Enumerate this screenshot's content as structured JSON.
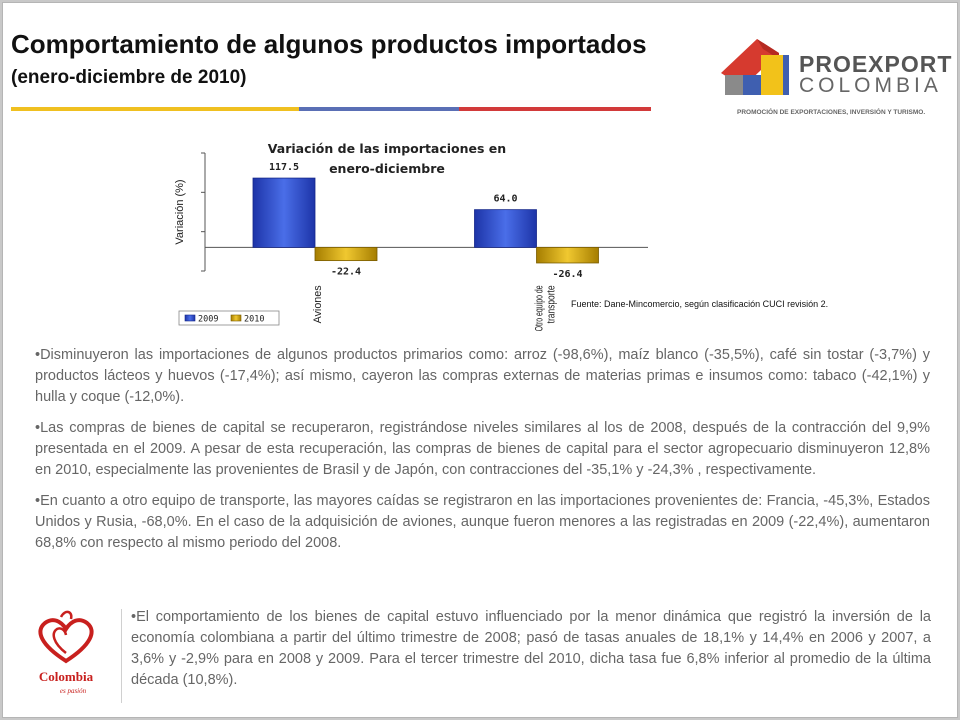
{
  "header": {
    "title": "Comportamiento de algunos productos importados",
    "subtitle": "(enero-diciembre de 2010)"
  },
  "logo": {
    "name": "PROEXPORT",
    "country": "COLOMBIA",
    "tagline": "PROMOCIÓN DE EXPORTACIONES, INVERSIÓN Y TURISMO."
  },
  "colors": {
    "series_2009": "#2e4fcf",
    "series_2010": "#d9a800",
    "logo_red": "#d63a2f",
    "logo_yellow": "#f2c21a",
    "logo_blue": "#3f5fb0",
    "logo_gray": "#8a8a8a"
  },
  "chart_data": {
    "type": "bar",
    "title": "Variación de las importaciones en enero-diciembre",
    "ylabel": "Variación (%)",
    "xlabel": "",
    "categories": [
      "Aviones",
      "Otro equipo de transporte"
    ],
    "category_lines": [
      [
        "Aviones"
      ],
      [
        "Otro equipo de",
        "transporte"
      ]
    ],
    "series": [
      {
        "name": "2009",
        "values": [
          117.5,
          64.0
        ],
        "labels": [
          "117.5",
          "64.0"
        ]
      },
      {
        "name": "2010",
        "values": [
          -22.4,
          -26.4
        ],
        "labels": [
          "-22.4",
          "-26.4"
        ]
      }
    ],
    "ylim": [
      -40,
      160
    ],
    "grid": false,
    "legend": "bottom-left"
  },
  "source_note": "Fuente: Dane-Mincomercio, según clasificación CUCI revisión 2.",
  "paragraphs": [
    "•Disminuyeron las importaciones de algunos productos primarios como: arroz (-98,6%), maíz blanco (-35,5%), café sin tostar (-3,7%) y productos lácteos y huevos (-17,4%);  así mismo, cayeron las compras externas de materias primas e insumos como: tabaco (-42,1%) y hulla y coque (-12,0%).",
    "•Las compras de bienes de capital se recuperaron, registrándose niveles similares al los de 2008, después de la contracción del 9,9% presentada en el 2009. A pesar de esta recuperación, las compras de bienes de capital para el sector agropecuario disminuyeron  12,8% en 2010, especialmente las provenientes de Brasil y de Japón, con contracciones del -35,1% y -24,3% , respectivamente.",
    "•En cuanto a otro equipo de transporte, las mayores caídas se registraron en las importaciones provenientes de: Francia, -45,3%, Estados Unidos y Rusia, -68,0%. En el caso de la adquisición de aviones, aunque fueron menores a las registradas en 2009 (-22,4%), aumentaron 68,8% con respecto al mismo periodo del 2008.",
    "•El comportamiento de los bienes de capital estuvo influenciado por la menor dinámica que registró la inversión de la economía colombiana a partir del último trimestre de 2008;  pasó de tasas anuales de 18,1% y 14,4% en 2006 y 2007, a 3,6% y -2,9% para en 2008 y  2009. Para el tercer trimestre del 2010, dicha tasa fue 6,8% inferior al promedio de la última década (10,8%)."
  ],
  "colombia_logo": {
    "text": "Colombia",
    "tagline": "es pasión",
    "icon": "colombia-heart-icon"
  }
}
